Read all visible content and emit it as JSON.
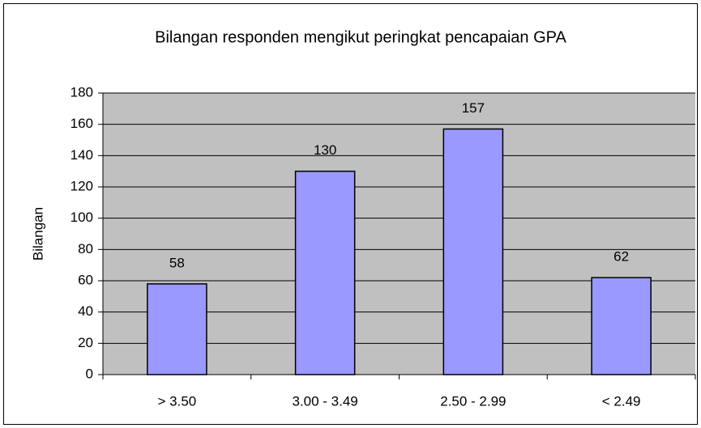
{
  "chart_data": {
    "type": "bar",
    "title": "Bilangan responden mengikut peringkat pencapaian GPA",
    "y_label": "Bilangan",
    "categories": [
      "> 3.50",
      "3.00 - 3.49",
      "2.50 - 2.99",
      "< 2.49"
    ],
    "values": [
      58,
      130,
      157,
      62
    ],
    "color": "#9999ff",
    "ylim": [
      0,
      180
    ],
    "yticks": [
      0,
      20,
      40,
      60,
      80,
      100,
      120,
      140,
      160,
      180
    ],
    "grid": true
  }
}
